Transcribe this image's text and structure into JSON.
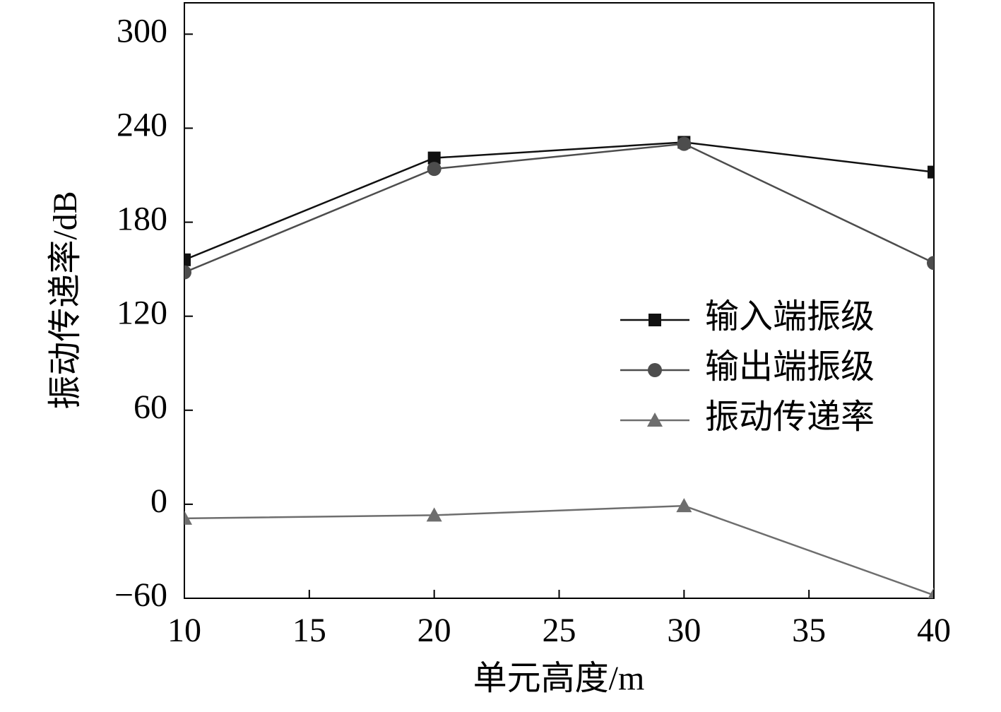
{
  "chart_data": {
    "type": "line",
    "xlabel": "单元高度/m",
    "ylabel": "振动传递率/dB",
    "x": [
      10,
      20,
      30,
      40
    ],
    "series": [
      {
        "name": "输入端振级",
        "color": "#111111",
        "marker": "square",
        "values": [
          156,
          221,
          231,
          212
        ]
      },
      {
        "name": "输出端振级",
        "color": "#4d4d4d",
        "marker": "circle",
        "values": [
          148,
          214,
          230,
          154
        ]
      },
      {
        "name": "振动传递率",
        "color": "#6e6e6e",
        "marker": "triangle",
        "values": [
          -9,
          -7,
          -1,
          -58
        ]
      }
    ],
    "xlim": [
      10,
      40
    ],
    "xticks": [
      10,
      15,
      20,
      25,
      30,
      35,
      40
    ],
    "ylim": [
      -60,
      320
    ],
    "yticks": [
      {
        "value": -60,
        "label": "−60"
      },
      0,
      60,
      120,
      180,
      240,
      300
    ],
    "legend": "right"
  }
}
